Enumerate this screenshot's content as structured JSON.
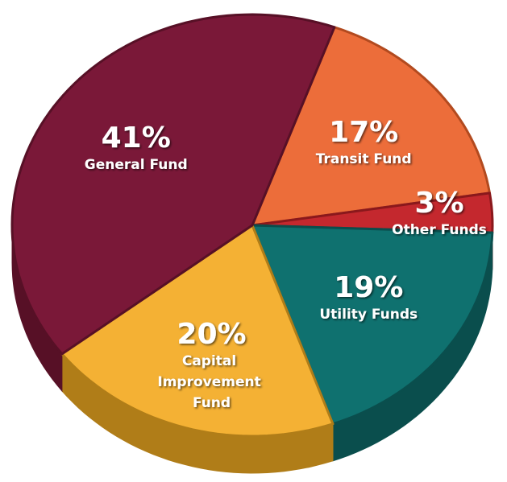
{
  "chart_data": {
    "type": "pie",
    "categories": [
      "Transit Fund",
      "Other Funds",
      "Utility Funds",
      "Capital Improvement Fund",
      "General Fund"
    ],
    "values": [
      17,
      3,
      19,
      20,
      41
    ],
    "value_labels": [
      "17%",
      "3%",
      "19%",
      "20%",
      "41%"
    ],
    "colors": [
      "#ec6d3a",
      "#c4282e",
      "#0f716f",
      "#f4b134",
      "#7a1838"
    ],
    "side_colors": [
      "#b24a1f",
      "#8a181c",
      "#0a4e4d",
      "#b07d18",
      "#571026"
    ]
  }
}
